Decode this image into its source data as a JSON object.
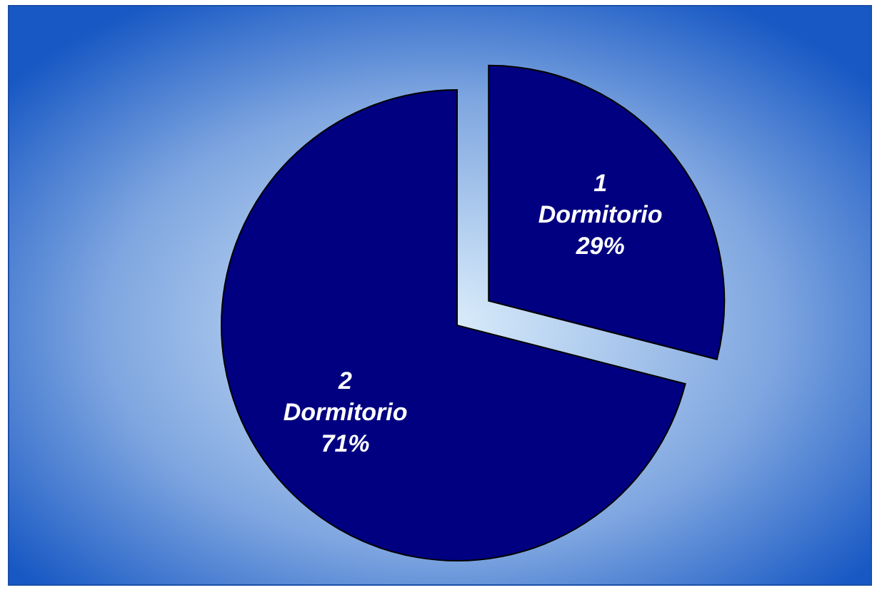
{
  "chart_data": {
    "type": "pie",
    "categories": [
      "1 Dormitorio",
      "2 Dormitorio"
    ],
    "values": [
      29,
      71
    ],
    "value_labels": [
      "29%",
      "71%"
    ],
    "colors": [
      "#000080",
      "#000080"
    ]
  }
}
